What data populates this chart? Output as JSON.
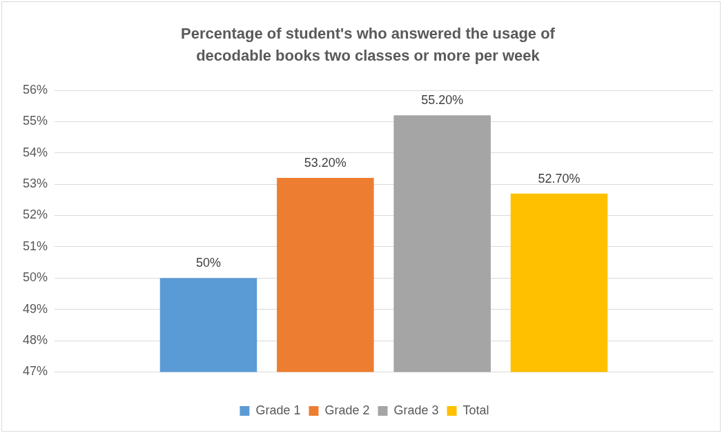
{
  "chart_data": {
    "type": "bar",
    "title": "Percentage of student's who answered the usage of decodable books two classes or more per week",
    "categories": [
      null
    ],
    "series": [
      {
        "name": "Grade 1",
        "color": "#5b9bd5",
        "values": [
          50
        ],
        "value_labels": [
          "50%"
        ]
      },
      {
        "name": "Grade 2",
        "color": "#ed7d31",
        "values": [
          53.2
        ],
        "value_labels": [
          "53.20%"
        ]
      },
      {
        "name": "Grade 3",
        "color": "#a5a5a5",
        "values": [
          55.2
        ],
        "value_labels": [
          "55.20%"
        ]
      },
      {
        "name": "Total",
        "color": "#ffc000",
        "values": [
          52.7
        ],
        "value_labels": [
          "52.70%"
        ]
      }
    ],
    "ylim": [
      47,
      56
    ],
    "yticks": [
      {
        "value": 47,
        "label": "47%"
      },
      {
        "value": 48,
        "label": "48%"
      },
      {
        "value": 49,
        "label": "49%"
      },
      {
        "value": 50,
        "label": "50%"
      },
      {
        "value": 51,
        "label": "51%"
      },
      {
        "value": 52,
        "label": "52%"
      },
      {
        "value": 53,
        "label": "53%"
      },
      {
        "value": 54,
        "label": "54%"
      },
      {
        "value": 55,
        "label": "55%"
      },
      {
        "value": 56,
        "label": "56%"
      }
    ],
    "grid": "y",
    "legend": "bottom"
  }
}
